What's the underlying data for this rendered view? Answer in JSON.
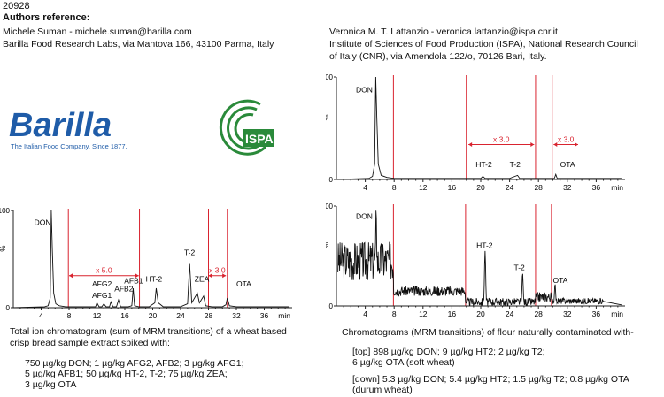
{
  "doc_id": "20928",
  "reference_heading": "Authors reference:",
  "left_author": {
    "line1": "Michele Suman - michele.suman@barilla.com",
    "line2": "Barilla Food Research Labs, via Mantova 166, 43100 Parma, Italy"
  },
  "right_author": {
    "line1": "Veronica M. T. Lattanzio - veronica.lattanzio@ispa.cnr.it",
    "line2": "Institute of Sciences of Food Production (ISPA), National Research Council",
    "line3": "of Italy (CNR), via Amendola 122/o, 70126 Bari, Italy."
  },
  "logos": {
    "barilla_text": "Barilla",
    "barilla_tagline": "The Italian Food Company. Since 1877.",
    "ispa_text": "ISPA"
  },
  "colors": {
    "accent_red": "#d9232f",
    "barilla_blue": "#1f5ca8",
    "ispa_green": "#2a8a3a"
  },
  "chart_data": [
    {
      "type": "line",
      "xlabel_unit": "min",
      "ylabel": "%",
      "xlim": [
        0,
        40
      ],
      "ylim": [
        0,
        100
      ],
      "xticks": [
        4,
        8,
        12,
        16,
        20,
        24,
        28,
        32,
        36
      ],
      "yticks": [
        0,
        100
      ],
      "segment_lines_min": [
        7.9,
        18.1,
        28.0,
        30.7
      ],
      "scale_annotations": [
        {
          "label": "x 5.0",
          "from": 8.0,
          "to": 18.0,
          "y": 33
        },
        {
          "label": "x 3.0",
          "from": 28.0,
          "to": 30.5,
          "y": 33
        }
      ],
      "peak_labels": [
        {
          "label": "DON",
          "x": 3.0,
          "y": 85
        },
        {
          "label": "AFG2",
          "x": 11.3,
          "y": 22
        },
        {
          "label": "AFG1",
          "x": 11.3,
          "y": 10
        },
        {
          "label": "AFB2",
          "x": 14.5,
          "y": 17
        },
        {
          "label": "AFB1",
          "x": 15.9,
          "y": 25
        },
        {
          "label": "HT-2",
          "x": 19.0,
          "y": 27
        },
        {
          "label": "T-2",
          "x": 24.5,
          "y": 54
        },
        {
          "label": "ZEA",
          "x": 26.0,
          "y": 27
        },
        {
          "label": "OTA",
          "x": 32.0,
          "y": 22
        }
      ],
      "trace": [
        [
          0,
          0
        ],
        [
          4.5,
          1
        ],
        [
          5.0,
          2
        ],
        [
          5.3,
          10
        ],
        [
          5.45,
          100
        ],
        [
          5.6,
          60
        ],
        [
          5.8,
          15
        ],
        [
          6.1,
          4
        ],
        [
          6.6,
          2
        ],
        [
          7.5,
          1
        ],
        [
          8,
          1
        ],
        [
          11,
          1
        ],
        [
          11.8,
          1
        ],
        [
          12.0,
          5
        ],
        [
          12.3,
          1
        ],
        [
          12.7,
          1
        ],
        [
          13.0,
          4
        ],
        [
          13.3,
          1
        ],
        [
          13.8,
          1
        ],
        [
          14.0,
          6
        ],
        [
          14.3,
          1
        ],
        [
          14.8,
          1
        ],
        [
          15.1,
          8
        ],
        [
          15.4,
          1
        ],
        [
          16.5,
          1
        ],
        [
          17.0,
          2
        ],
        [
          17.2,
          20
        ],
        [
          17.4,
          2
        ],
        [
          18,
          1
        ],
        [
          19.5,
          1
        ],
        [
          20.3,
          5
        ],
        [
          20.5,
          20
        ],
        [
          20.8,
          5
        ],
        [
          21.5,
          1
        ],
        [
          24,
          1
        ],
        [
          25.0,
          4
        ],
        [
          25.3,
          45
        ],
        [
          25.6,
          5
        ],
        [
          26.4,
          15
        ],
        [
          26.7,
          5
        ],
        [
          27.3,
          12
        ],
        [
          27.6,
          2
        ],
        [
          28.5,
          1
        ],
        [
          30,
          1
        ],
        [
          30.5,
          3
        ],
        [
          30.7,
          10
        ],
        [
          31.0,
          2
        ],
        [
          32,
          1
        ],
        [
          36,
          1
        ],
        [
          39.5,
          1
        ]
      ]
    },
    {
      "type": "line",
      "xlabel_unit": "min",
      "ylabel": "%",
      "xlim": [
        0,
        40
      ],
      "ylim": [
        0,
        100
      ],
      "xticks": [
        4,
        8,
        12,
        16,
        20,
        24,
        28,
        32,
        36
      ],
      "yticks": [
        0,
        100
      ],
      "segment_lines_min": [
        7.9,
        18.0,
        27.6,
        29.9
      ],
      "scale_annotations": [
        {
          "label": "x 3.0",
          "from": 18.3,
          "to": 27.4,
          "y": 34
        },
        {
          "label": "x 3.0",
          "from": 30.1,
          "to": 33.5,
          "y": 34
        }
      ],
      "peak_labels": [
        {
          "label": "DON",
          "x": 2.7,
          "y": 85
        },
        {
          "label": "HT-2",
          "x": 19.3,
          "y": 12
        },
        {
          "label": "T-2",
          "x": 24.0,
          "y": 12
        },
        {
          "label": "OTA",
          "x": 31.0,
          "y": 12
        }
      ],
      "trace": [
        [
          0,
          0
        ],
        [
          4.5,
          1
        ],
        [
          5.0,
          3
        ],
        [
          5.3,
          15
        ],
        [
          5.45,
          100
        ],
        [
          5.6,
          60
        ],
        [
          5.8,
          15
        ],
        [
          6.2,
          4
        ],
        [
          7.0,
          2
        ],
        [
          8,
          1
        ],
        [
          18,
          1
        ],
        [
          20,
          1
        ],
        [
          20.3,
          3
        ],
        [
          20.6,
          1
        ],
        [
          24,
          1
        ],
        [
          25.1,
          4
        ],
        [
          25.4,
          1
        ],
        [
          27,
          1
        ],
        [
          28,
          1
        ],
        [
          30.2,
          1
        ],
        [
          30.4,
          5
        ],
        [
          30.6,
          1
        ],
        [
          32,
          1
        ],
        [
          36,
          1
        ],
        [
          39.5,
          1
        ]
      ]
    },
    {
      "type": "line",
      "xlabel_unit": "min",
      "ylabel": "%",
      "xlim": [
        0,
        40
      ],
      "ylim": [
        0,
        100
      ],
      "xticks": [
        4,
        8,
        12,
        16,
        20,
        24,
        28,
        32,
        36
      ],
      "yticks": [
        0,
        100
      ],
      "segment_lines_min": [
        7.9,
        17.9,
        27.6,
        29.8
      ],
      "peak_labels": [
        {
          "label": "DON",
          "x": 2.7,
          "y": 87
        },
        {
          "label": "HT-2",
          "x": 19.4,
          "y": 58
        },
        {
          "label": "T-2",
          "x": 24.6,
          "y": 36
        },
        {
          "label": "OTA",
          "x": 30.0,
          "y": 23
        }
      ],
      "noise_bands": [
        {
          "from": 0,
          "to": 7.9,
          "base": 45,
          "amp": 20
        },
        {
          "from": 7.9,
          "to": 17.9,
          "base": 15,
          "amp": 5
        },
        {
          "from": 17.9,
          "to": 27.6,
          "base": 4,
          "amp": 4
        },
        {
          "from": 27.6,
          "to": 29.8,
          "base": 9,
          "amp": 5
        },
        {
          "from": 29.8,
          "to": 37,
          "base": 5,
          "amp": 3
        }
      ],
      "peaks": [
        {
          "x": 5.5,
          "y": 98
        },
        {
          "x": 20.6,
          "y": 55
        },
        {
          "x": 25.8,
          "y": 33
        },
        {
          "x": 30.3,
          "y": 22
        }
      ]
    }
  ],
  "captions": {
    "left_title_line1": "Total ion chromatogram (sum of MRM transitions) of a wheat based",
    "left_title_line2": "crisp bread sample extract spiked with:",
    "left_list": [
      "750 µg/kg DON; 1 µg/kg AFG2, AFB2; 3 µg/kg AFG1;",
      "5 µg/kg AFB1; 50 µg/kg HT-2, T-2; 75 µg/kg ZEA;",
      "3 µg/kg OTA"
    ],
    "right_title": "Chromatograms (MRM transitions) of flour naturally contaminated with-",
    "right_top": [
      "[top] 898 µg/kg DON; 9 µg/kg HT2; 2 µg/kg T2;",
      "6 µg/kg OTA (soft wheat)"
    ],
    "right_down": [
      "[down] 5.3 µg/kg DON; 5.4 µg/kg HT2; 1.5 µg/kg T2; 0.8 µg/kg OTA",
      "(durum wheat)"
    ]
  }
}
